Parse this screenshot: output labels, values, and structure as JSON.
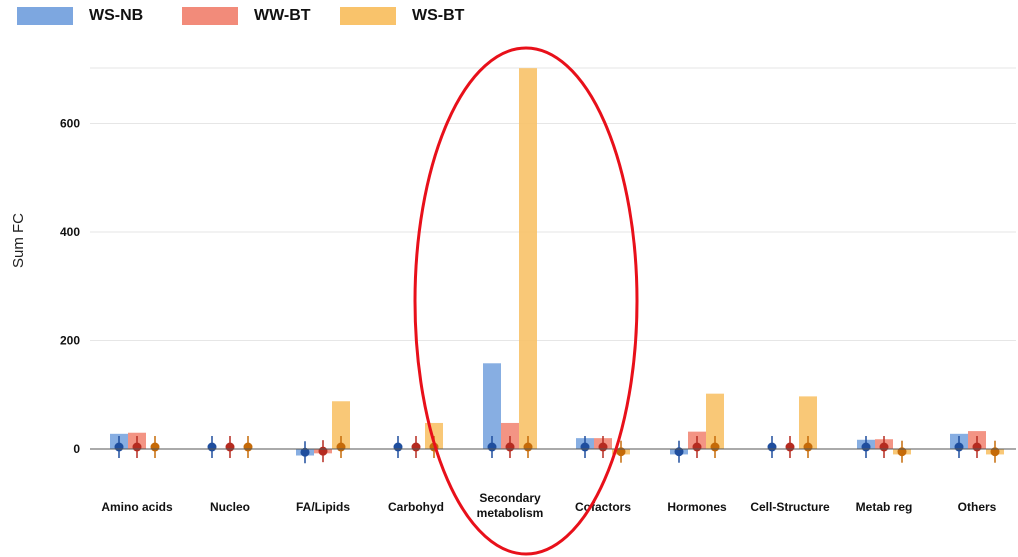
{
  "chart_data": {
    "type": "bar",
    "title": "",
    "xlabel": "",
    "ylabel": "Sum FC",
    "ylim": [
      -20,
      710
    ],
    "yticks": [
      0,
      200,
      400,
      600
    ],
    "grid": true,
    "legend_position": "top-left",
    "categories": [
      "Amino acids",
      "Nucleo",
      "FA/Lipids",
      "Carbohyd",
      "Secondary\nmetabolism",
      "Cofactors",
      "Hormones",
      "Cell-Structure",
      "Metab reg",
      "Others"
    ],
    "series": [
      {
        "name": "WS-NB",
        "color": "#7da7e0",
        "dot_color": "#1f4e9e",
        "values": [
          28,
          0,
          -12,
          0,
          158,
          20,
          -10,
          0,
          17,
          28
        ]
      },
      {
        "name": "WW-BT",
        "color": "#f28b7a",
        "dot_color": "#b52b20",
        "values": [
          30,
          0,
          -8,
          0,
          48,
          20,
          32,
          0,
          18,
          33
        ]
      },
      {
        "name": "WS-BT",
        "color": "#f9c36b",
        "dot_color": "#c56a08",
        "values": [
          0,
          0,
          88,
          48,
          702,
          -10,
          102,
          97,
          -10,
          -10
        ]
      }
    ]
  }
}
